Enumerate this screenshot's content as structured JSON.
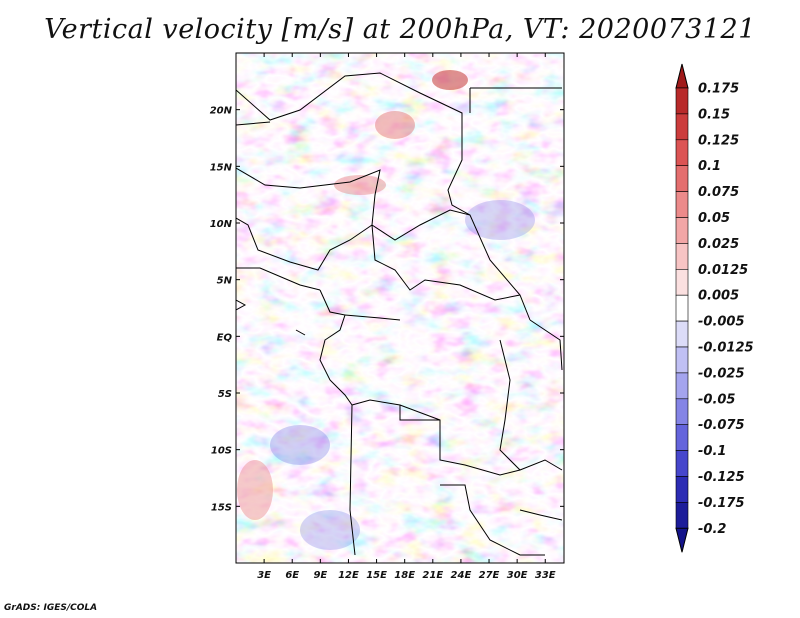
{
  "title": "Vertical velocity [m/s] at 200hPa, VT: 2020073121",
  "footer": "GrADS: IGES/COLA",
  "map": {
    "lon_range": [
      0,
      35
    ],
    "lat_range": [
      -20,
      25
    ],
    "x_ticks": [
      "3E",
      "6E",
      "9E",
      "12E",
      "15E",
      "18E",
      "21E",
      "24E",
      "27E",
      "30E",
      "33E"
    ],
    "y_ticks": [
      "20N",
      "15N",
      "10N",
      "5N",
      "EQ",
      "5S",
      "10S",
      "15S"
    ]
  },
  "colorbar": {
    "labels": [
      "0.175",
      "0.15",
      "0.125",
      "0.1",
      "0.075",
      "0.05",
      "0.025",
      "0.0125",
      "0.005",
      "-0.005",
      "-0.0125",
      "-0.025",
      "-0.05",
      "-0.075",
      "-0.1",
      "-0.125",
      "-0.175",
      "-0.2"
    ],
    "colors": [
      "#a01a1a",
      "#b82a2a",
      "#cc3c3c",
      "#dc5454",
      "#e46e6e",
      "#ec8a8a",
      "#f2a6a6",
      "#f7c4c4",
      "#fbe0e0",
      "#ffffff",
      "#dcdcf8",
      "#c0c0f4",
      "#a4a4ee",
      "#8484e6",
      "#6464dc",
      "#4646cc",
      "#2c2cb4",
      "#1c1c9a",
      "#14148a"
    ]
  }
}
